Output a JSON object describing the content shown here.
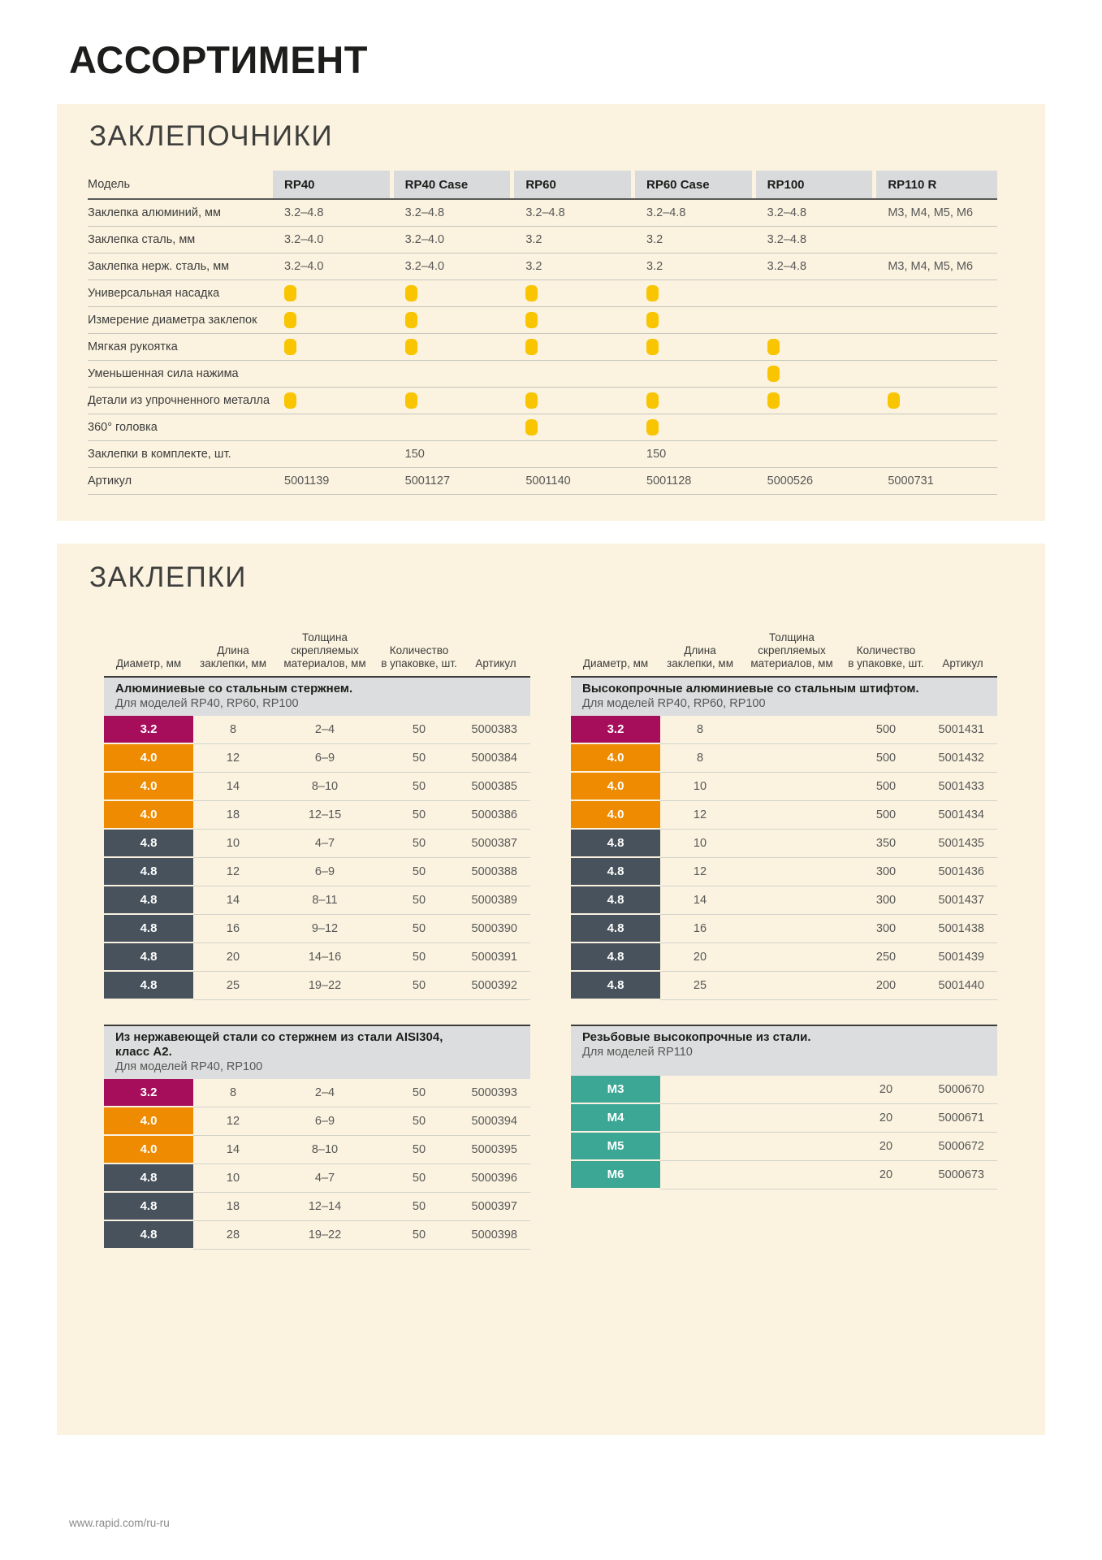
{
  "page": {
    "title": "АССОРТИМЕНТ",
    "footer": "www.rapid.com/ru-ru"
  },
  "colors": {
    "accent_yellow": "#f8c500",
    "crimson": "#a60d5b",
    "orange": "#ee8b00",
    "slate": "#47525c",
    "teal": "#3ca795",
    "panel_cream": "#fbf3e0",
    "header_gray": "#d9dadb"
  },
  "riveters": {
    "section_title": "ЗАКЛЕПОЧНИКИ",
    "columns": [
      "Модель",
      "RP40",
      "RP40 Case",
      "RP60",
      "RP60 Case",
      "RP100",
      "RP110 R"
    ],
    "rows": [
      {
        "label": "Заклепка алюминий, мм",
        "values": [
          "3.2–4.8",
          "3.2–4.8",
          "3.2–4.8",
          "3.2–4.8",
          "3.2–4.8",
          "M3, M4, M5, M6"
        ]
      },
      {
        "label": "Заклепка сталь, мм",
        "values": [
          "3.2–4.0",
          "3.2–4.0",
          "3.2",
          "3.2",
          "3.2–4.8",
          ""
        ]
      },
      {
        "label": "Заклепка нерж. сталь, мм",
        "values": [
          "3.2–4.0",
          "3.2–4.0",
          "3.2",
          "3.2",
          "3.2–4.8",
          "M3, M4, M5, M6"
        ]
      },
      {
        "label": "Универсальная насадка",
        "values": [
          "dot",
          "dot",
          "dot",
          "dot",
          "",
          ""
        ]
      },
      {
        "label": "Измерение диаметра заклепок",
        "values": [
          "dot",
          "dot",
          "dot",
          "dot",
          "",
          ""
        ]
      },
      {
        "label": "Мягкая рукоятка",
        "values": [
          "dot",
          "dot",
          "dot",
          "dot",
          "dot",
          ""
        ]
      },
      {
        "label": "Уменьшенная сила нажима",
        "values": [
          "",
          "",
          "",
          "",
          "dot",
          ""
        ]
      },
      {
        "label": "Детали из упрочненного металла",
        "values": [
          "dot",
          "dot",
          "dot",
          "dot",
          "dot",
          "dot"
        ]
      },
      {
        "label": "360° головка",
        "values": [
          "",
          "",
          "dot",
          "dot",
          "",
          ""
        ]
      },
      {
        "label": "Заклепки в комплекте, шт.",
        "values": [
          "",
          "150",
          "",
          "150",
          "",
          ""
        ]
      },
      {
        "label": "Артикул",
        "values": [
          "5001139",
          "5001127",
          "5001140",
          "5001128",
          "5000526",
          "5000731"
        ]
      }
    ]
  },
  "rivets": {
    "section_title": "ЗАКЛЕПКИ",
    "column_headers": [
      "Диаметр, мм",
      "Длина\nзаклепки, мм",
      "Толщина\nскрепляемых\nматериалов, мм",
      "Количество\nв упаковке, шт.",
      "Артикул"
    ],
    "tables": [
      {
        "id": "aluminium-steel-core",
        "show_column_headers": true,
        "title": "Алюминиевые со стальным стержнем.",
        "models": "Для моделей RP40, RP60, RP100",
        "rows": [
          {
            "diameter": "3.2",
            "color": "crimson",
            "length": "8",
            "grip": "2–4",
            "qty": "50",
            "art": "5000383"
          },
          {
            "diameter": "4.0",
            "color": "orange",
            "length": "12",
            "grip": "6–9",
            "qty": "50",
            "art": "5000384"
          },
          {
            "diameter": "4.0",
            "color": "orange",
            "length": "14",
            "grip": "8–10",
            "qty": "50",
            "art": "5000385"
          },
          {
            "diameter": "4.0",
            "color": "orange",
            "length": "18",
            "grip": "12–15",
            "qty": "50",
            "art": "5000386"
          },
          {
            "diameter": "4.8",
            "color": "slate",
            "length": "10",
            "grip": "4–7",
            "qty": "50",
            "art": "5000387"
          },
          {
            "diameter": "4.8",
            "color": "slate",
            "length": "12",
            "grip": "6–9",
            "qty": "50",
            "art": "5000388"
          },
          {
            "diameter": "4.8",
            "color": "slate",
            "length": "14",
            "grip": "8–11",
            "qty": "50",
            "art": "5000389"
          },
          {
            "diameter": "4.8",
            "color": "slate",
            "length": "16",
            "grip": "9–12",
            "qty": "50",
            "art": "5000390"
          },
          {
            "diameter": "4.8",
            "color": "slate",
            "length": "20",
            "grip": "14–16",
            "qty": "50",
            "art": "5000391"
          },
          {
            "diameter": "4.8",
            "color": "slate",
            "length": "25",
            "grip": "19–22",
            "qty": "50",
            "art": "5000392"
          }
        ]
      },
      {
        "id": "high-strength-aluminium",
        "show_column_headers": true,
        "title": "Высокопрочные алюминиевые со стальным штифтом.",
        "models": "Для моделей RP40, RP60, RP100",
        "rows": [
          {
            "diameter": "3.2",
            "color": "crimson",
            "length": "8",
            "grip": "",
            "qty": "500",
            "art": "5001431"
          },
          {
            "diameter": "4.0",
            "color": "orange",
            "length": "8",
            "grip": "",
            "qty": "500",
            "art": "5001432"
          },
          {
            "diameter": "4.0",
            "color": "orange",
            "length": "10",
            "grip": "",
            "qty": "500",
            "art": "5001433"
          },
          {
            "diameter": "4.0",
            "color": "orange",
            "length": "12",
            "grip": "",
            "qty": "500",
            "art": "5001434"
          },
          {
            "diameter": "4.8",
            "color": "slate",
            "length": "10",
            "grip": "",
            "qty": "350",
            "art": "5001435"
          },
          {
            "diameter": "4.8",
            "color": "slate",
            "length": "12",
            "grip": "",
            "qty": "300",
            "art": "5001436"
          },
          {
            "diameter": "4.8",
            "color": "slate",
            "length": "14",
            "grip": "",
            "qty": "300",
            "art": "5001437"
          },
          {
            "diameter": "4.8",
            "color": "slate",
            "length": "16",
            "grip": "",
            "qty": "300",
            "art": "5001438"
          },
          {
            "diameter": "4.8",
            "color": "slate",
            "length": "20",
            "grip": "",
            "qty": "250",
            "art": "5001439"
          },
          {
            "diameter": "4.8",
            "color": "slate",
            "length": "25",
            "grip": "",
            "qty": "200",
            "art": "5001440"
          }
        ]
      },
      {
        "id": "stainless-aisi304",
        "show_column_headers": false,
        "title": "Из нержавеющей стали со стержнем из стали AISI304,\nкласс А2.",
        "models": "Для моделей RP40, RP100",
        "rows": [
          {
            "diameter": "3.2",
            "color": "crimson",
            "length": "8",
            "grip": "2–4",
            "qty": "50",
            "art": "5000393"
          },
          {
            "diameter": "4.0",
            "color": "orange",
            "length": "12",
            "grip": "6–9",
            "qty": "50",
            "art": "5000394"
          },
          {
            "diameter": "4.0",
            "color": "orange",
            "length": "14",
            "grip": "8–10",
            "qty": "50",
            "art": "5000395"
          },
          {
            "diameter": "4.8",
            "color": "slate",
            "length": "10",
            "grip": "4–7",
            "qty": "50",
            "art": "5000396"
          },
          {
            "diameter": "4.8",
            "color": "slate",
            "length": "18",
            "grip": "12–14",
            "qty": "50",
            "art": "5000397"
          },
          {
            "diameter": "4.8",
            "color": "slate",
            "length": "28",
            "grip": "19–22",
            "qty": "50",
            "art": "5000398"
          }
        ]
      },
      {
        "id": "threaded-high-strength-steel",
        "show_column_headers": false,
        "title": "Резьбовые высокопрочные из стали.",
        "models": "Для моделей RP110",
        "rows": [
          {
            "diameter": "M3",
            "color": "teal",
            "length": "",
            "grip": "",
            "qty": "20",
            "art": "5000670"
          },
          {
            "diameter": "M4",
            "color": "teal",
            "length": "",
            "grip": "",
            "qty": "20",
            "art": "5000671"
          },
          {
            "diameter": "M5",
            "color": "teal",
            "length": "",
            "grip": "",
            "qty": "20",
            "art": "5000672"
          },
          {
            "diameter": "M6",
            "color": "teal",
            "length": "",
            "grip": "",
            "qty": "20",
            "art": "5000673"
          }
        ]
      }
    ]
  }
}
